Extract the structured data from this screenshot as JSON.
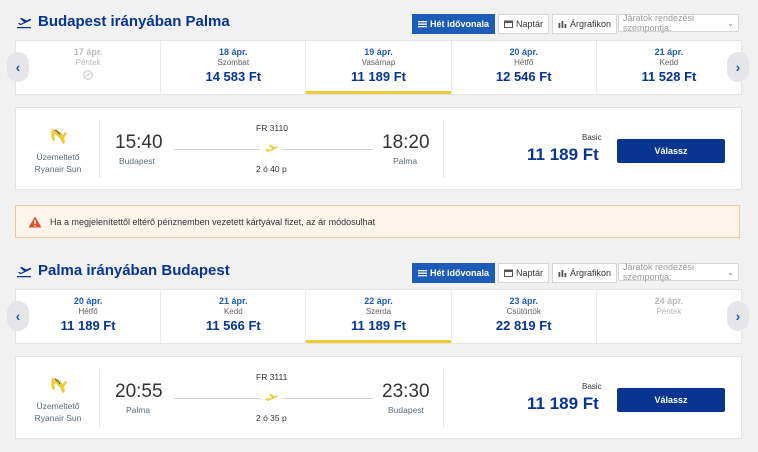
{
  "outbound": {
    "title": "Budapest irányában Palma",
    "tabs": [
      "Hét idővonala",
      "Naptár",
      "Árgrafikon"
    ],
    "sort_placeholder": "Járatok rendezési szempontja:",
    "dates": [
      {
        "date": "17 ápr.",
        "weekday": "Péntek",
        "price": "",
        "state": "disabled-noflight"
      },
      {
        "date": "18 ápr.",
        "weekday": "Szombat",
        "price": "14 583 Ft",
        "state": "normal"
      },
      {
        "date": "19 ápr.",
        "weekday": "Vasárnap",
        "price": "11 189 Ft",
        "state": "selected"
      },
      {
        "date": "20 ápr.",
        "weekday": "Hétfő",
        "price": "12 546 Ft",
        "state": "normal"
      },
      {
        "date": "21 ápr.",
        "weekday": "Kedd",
        "price": "11 528 Ft",
        "state": "normal"
      }
    ],
    "flight": {
      "operator_label": "Üzemeltető",
      "operator": "Ryanair Sun",
      "depart_time": "15:40",
      "depart_city": "Budapest",
      "flight_no": "FR 3110",
      "duration": "2 ó 40 p",
      "arrive_time": "18:20",
      "arrive_city": "Palma",
      "fare": "Basic",
      "price": "11 189 Ft",
      "select_label": "Válassz"
    }
  },
  "notice": "Ha a megjelenítettől eltérő pénznemben vezetett kártyával fizet, az ár módosulhat",
  "inbound": {
    "title": "Palma irányában Budapest",
    "tabs": [
      "Hét idővonala",
      "Naptár",
      "Árgrafikon"
    ],
    "sort_placeholder": "Járatok rendezési szempontja:",
    "dates": [
      {
        "date": "20 ápr.",
        "weekday": "Hétfő",
        "price": "11 189 Ft",
        "state": "normal"
      },
      {
        "date": "21 ápr.",
        "weekday": "Kedd",
        "price": "11 566 Ft",
        "state": "normal"
      },
      {
        "date": "22 ápr.",
        "weekday": "Szerda",
        "price": "11 189 Ft",
        "state": "selected"
      },
      {
        "date": "23 ápr.",
        "weekday": "Csütörtök",
        "price": "22 819 Ft",
        "state": "normal"
      },
      {
        "date": "24 ápr.",
        "weekday": "Péntek",
        "price": "",
        "state": "disabled"
      }
    ],
    "flight": {
      "operator_label": "Üzemeltető",
      "operator": "Ryanair Sun",
      "depart_time": "20:55",
      "depart_city": "Palma",
      "flight_no": "FR 3111",
      "duration": "2 ó 35 p",
      "arrive_time": "23:30",
      "arrive_city": "Budapest",
      "fare": "Basic",
      "price": "11 189 Ft",
      "select_label": "Válassz"
    }
  },
  "colors": {
    "brand_blue": "#073590",
    "accent_yellow": "#f1c933",
    "link_blue": "#1d5cb6"
  }
}
